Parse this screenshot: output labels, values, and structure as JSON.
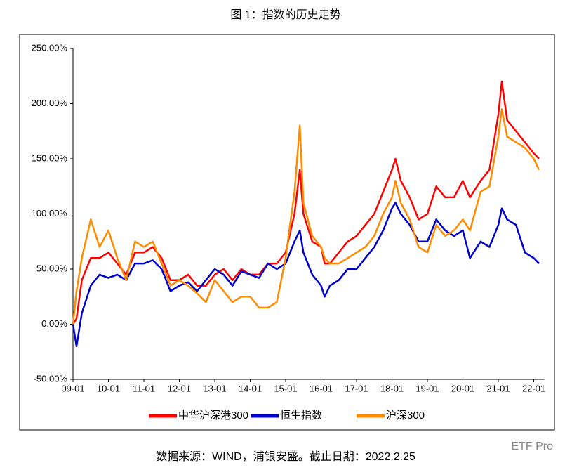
{
  "chart_data": {
    "type": "line",
    "title": "图 1：指数的历史走势",
    "source": "数据来源：WIND，浦银安盛。截止日期：2022.2.25",
    "watermark": "ETF Pro",
    "x": [
      2009,
      2009.1,
      2009.25,
      2009.5,
      2009.75,
      2010,
      2010.25,
      2010.5,
      2010.75,
      2011,
      2011.25,
      2011.5,
      2011.75,
      2012,
      2012.25,
      2012.5,
      2012.75,
      2013,
      2013.25,
      2013.5,
      2013.75,
      2014,
      2014.25,
      2014.5,
      2014.75,
      2015,
      2015.25,
      2015.4,
      2015.5,
      2015.75,
      2016,
      2016.1,
      2016.25,
      2016.5,
      2016.75,
      2017,
      2017.25,
      2017.5,
      2017.75,
      2018,
      2018.1,
      2018.25,
      2018.5,
      2018.75,
      2019,
      2019.25,
      2019.5,
      2019.75,
      2020,
      2020.2,
      2020.5,
      2020.75,
      2021,
      2021.1,
      2021.25,
      2021.5,
      2021.75,
      2022,
      2022.15
    ],
    "series": [
      {
        "name": "中华沪深港300",
        "color": "#ff0000",
        "values": [
          0,
          5,
          40,
          60,
          60,
          65,
          55,
          45,
          65,
          65,
          70,
          60,
          40,
          40,
          45,
          35,
          35,
          45,
          50,
          40,
          50,
          45,
          45,
          55,
          55,
          65,
          100,
          140,
          100,
          75,
          70,
          55,
          55,
          65,
          75,
          80,
          90,
          100,
          120,
          140,
          150,
          130,
          115,
          95,
          100,
          125,
          115,
          115,
          130,
          115,
          130,
          140,
          190,
          220,
          185,
          175,
          165,
          155,
          150
        ]
      },
      {
        "name": "恒生指数",
        "color": "#0000cc",
        "values": [
          0,
          -20,
          10,
          35,
          45,
          42,
          45,
          40,
          55,
          55,
          58,
          50,
          30,
          35,
          38,
          30,
          40,
          50,
          45,
          35,
          48,
          45,
          42,
          55,
          50,
          55,
          75,
          85,
          65,
          45,
          35,
          25,
          35,
          40,
          50,
          50,
          60,
          70,
          85,
          105,
          110,
          100,
          90,
          75,
          75,
          95,
          85,
          80,
          85,
          60,
          75,
          70,
          90,
          105,
          95,
          90,
          65,
          60,
          55
        ]
      },
      {
        "name": "沪深300",
        "color": "#ff8c00",
        "values": [
          0,
          30,
          60,
          95,
          70,
          85,
          60,
          40,
          75,
          70,
          75,
          55,
          35,
          40,
          35,
          28,
          20,
          40,
          30,
          20,
          25,
          25,
          15,
          15,
          20,
          60,
          120,
          180,
          110,
          80,
          70,
          60,
          55,
          55,
          60,
          65,
          70,
          80,
          100,
          115,
          130,
          110,
          95,
          70,
          65,
          90,
          80,
          85,
          95,
          85,
          120,
          125,
          170,
          195,
          170,
          165,
          160,
          150,
          140
        ]
      }
    ],
    "xlim": [
      2009,
      2022.3
    ],
    "xticks": [
      {
        "value": 2009,
        "label": "09-01"
      },
      {
        "value": 2010,
        "label": "10-01"
      },
      {
        "value": 2011,
        "label": "11-01"
      },
      {
        "value": 2012,
        "label": "12-01"
      },
      {
        "value": 2013,
        "label": "13-01"
      },
      {
        "value": 2014,
        "label": "14-01"
      },
      {
        "value": 2015,
        "label": "15-01"
      },
      {
        "value": 2016,
        "label": "16-01"
      },
      {
        "value": 2017,
        "label": "17-01"
      },
      {
        "value": 2018,
        "label": "18-01"
      },
      {
        "value": 2019,
        "label": "19-01"
      },
      {
        "value": 2020,
        "label": "20-01"
      },
      {
        "value": 2021,
        "label": "21-01"
      },
      {
        "value": 2022,
        "label": "22-01"
      }
    ],
    "ylim": [
      -50,
      250
    ],
    "yticks": [
      {
        "value": -50,
        "label": "-50.00%"
      },
      {
        "value": 0,
        "label": "0.00%"
      },
      {
        "value": 50,
        "label": "50.00%"
      },
      {
        "value": 100,
        "label": "100.00%"
      },
      {
        "value": 150,
        "label": "150.00%"
      },
      {
        "value": 200,
        "label": "200.00%"
      },
      {
        "value": 250,
        "label": "250.00%"
      }
    ],
    "legend": "bottom"
  }
}
